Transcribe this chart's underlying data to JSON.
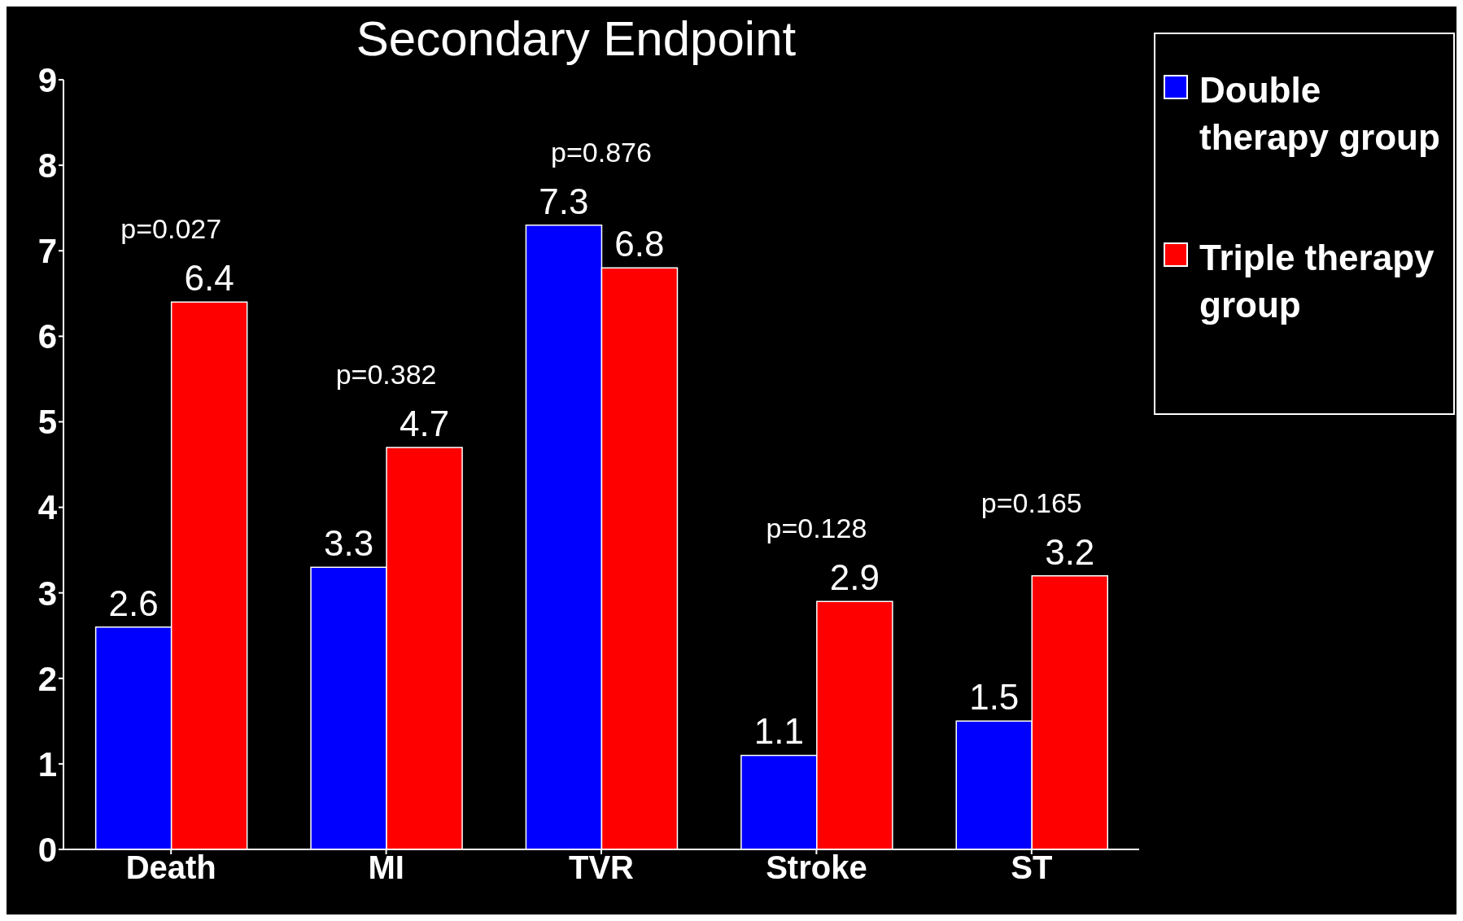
{
  "chart_data": {
    "type": "bar",
    "title": "Secondary Endpoint",
    "categories": [
      "Death",
      "MI",
      "TVR",
      "Stroke",
      "ST"
    ],
    "series": [
      {
        "name": "Double therapy group",
        "color": "#0000ff",
        "values": [
          2.6,
          3.3,
          7.3,
          1.1,
          1.5
        ]
      },
      {
        "name": "Triple therapy group",
        "color": "#ff0000",
        "values": [
          6.4,
          4.7,
          6.8,
          2.9,
          3.2
        ]
      }
    ],
    "ylim": [
      0,
      9
    ],
    "yticks": [
      0,
      1,
      2,
      3,
      4,
      5,
      6,
      7,
      8,
      9
    ],
    "data_labels": true,
    "legend": "top right",
    "grid": false,
    "annotations": [
      "p=0.027",
      "p=0.382",
      "p=0.876",
      "p=0.128",
      "p=0.165"
    ]
  }
}
